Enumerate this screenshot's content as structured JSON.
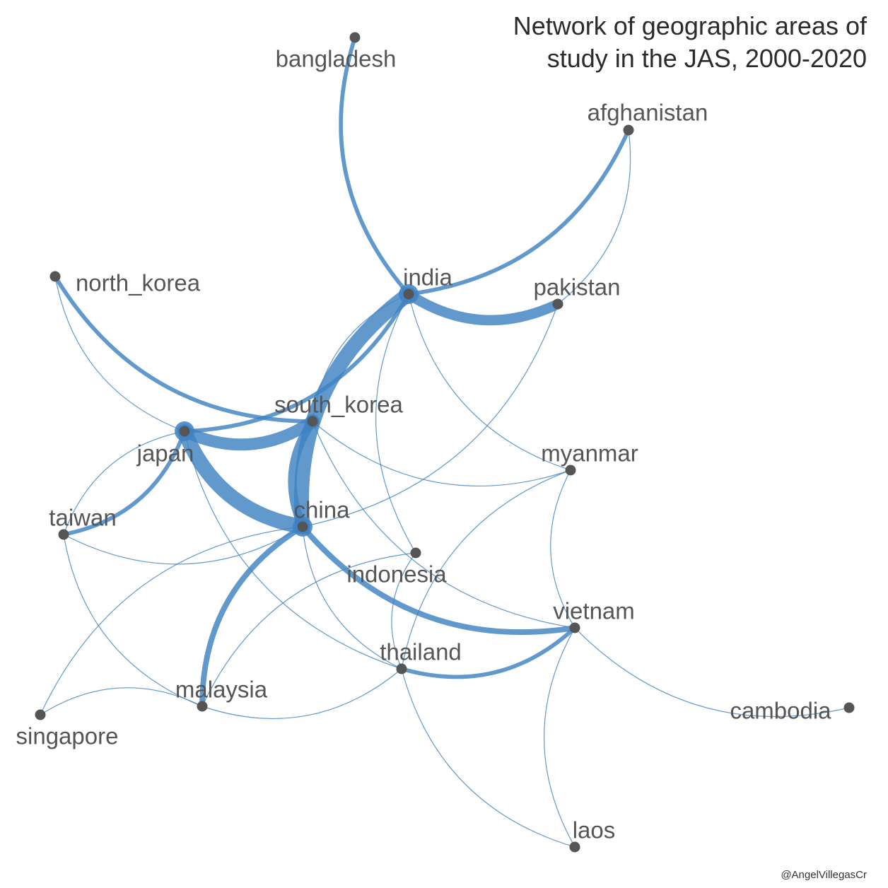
{
  "title_line1": "Network of geographic areas of",
  "title_line2": "study in the JAS, 2000-2020",
  "credit": "@AngelVillegasCr",
  "colors": {
    "edge": "#3f83c2",
    "node": "#555555",
    "label": "#555555",
    "title": "#2b2b2b"
  },
  "nodes": [
    {
      "id": "bangladesh",
      "label": "bangladesh"
    },
    {
      "id": "afghanistan",
      "label": "afghanistan"
    },
    {
      "id": "north_korea",
      "label": "north_korea"
    },
    {
      "id": "india",
      "label": "india"
    },
    {
      "id": "pakistan",
      "label": "pakistan"
    },
    {
      "id": "south_korea",
      "label": "south_korea"
    },
    {
      "id": "japan",
      "label": "japan"
    },
    {
      "id": "myanmar",
      "label": "myanmar"
    },
    {
      "id": "taiwan",
      "label": "taiwan"
    },
    {
      "id": "china",
      "label": "china"
    },
    {
      "id": "indonesia",
      "label": "indonesia"
    },
    {
      "id": "vietnam",
      "label": "vietnam"
    },
    {
      "id": "thailand",
      "label": "thailand"
    },
    {
      "id": "malaysia",
      "label": "malaysia"
    },
    {
      "id": "cambodia",
      "label": "cambodia"
    },
    {
      "id": "singapore",
      "label": "singapore"
    },
    {
      "id": "laos",
      "label": "laos"
    }
  ],
  "edges": [
    {
      "source": "japan",
      "target": "china",
      "weight": 9
    },
    {
      "source": "india",
      "target": "china",
      "weight": 9
    },
    {
      "source": "japan",
      "target": "south_korea",
      "weight": 7
    },
    {
      "source": "india",
      "target": "pakistan",
      "weight": 6
    },
    {
      "source": "south_korea",
      "target": "china",
      "weight": 5
    },
    {
      "source": "china",
      "target": "malaysia",
      "weight": 3
    },
    {
      "source": "china",
      "target": "vietnam",
      "weight": 3
    },
    {
      "source": "bangladesh",
      "target": "india",
      "weight": 2
    },
    {
      "source": "india",
      "target": "afghanistan",
      "weight": 2
    },
    {
      "source": "north_korea",
      "target": "south_korea",
      "weight": 2
    },
    {
      "source": "japan",
      "target": "india",
      "weight": 2
    },
    {
      "source": "taiwan",
      "target": "japan",
      "weight": 2
    },
    {
      "source": "thailand",
      "target": "vietnam",
      "weight": 2
    },
    {
      "source": "north_korea",
      "target": "japan",
      "weight": 1
    },
    {
      "source": "pakistan",
      "target": "afghanistan",
      "weight": 1
    },
    {
      "source": "india",
      "target": "south_korea",
      "weight": 1
    },
    {
      "source": "india",
      "target": "myanmar",
      "weight": 1
    },
    {
      "source": "india",
      "target": "indonesia",
      "weight": 1
    },
    {
      "source": "china",
      "target": "pakistan",
      "weight": 1
    },
    {
      "source": "south_korea",
      "target": "myanmar",
      "weight": 1
    },
    {
      "source": "south_korea",
      "target": "vietnam",
      "weight": 1
    },
    {
      "source": "japan",
      "target": "taiwan",
      "weight": 1
    },
    {
      "source": "japan",
      "target": "thailand",
      "weight": 1
    },
    {
      "source": "taiwan",
      "target": "china",
      "weight": 1
    },
    {
      "source": "taiwan",
      "target": "malaysia",
      "weight": 1
    },
    {
      "source": "china",
      "target": "singapore",
      "weight": 1
    },
    {
      "source": "china",
      "target": "thailand",
      "weight": 1
    },
    {
      "source": "indonesia",
      "target": "malaysia",
      "weight": 1
    },
    {
      "source": "indonesia",
      "target": "thailand",
      "weight": 1
    },
    {
      "source": "myanmar",
      "target": "thailand",
      "weight": 1
    },
    {
      "source": "myanmar",
      "target": "vietnam",
      "weight": 1
    },
    {
      "source": "malaysia",
      "target": "thailand",
      "weight": 1
    },
    {
      "source": "malaysia",
      "target": "singapore",
      "weight": 1
    },
    {
      "source": "vietnam",
      "target": "cambodia",
      "weight": 1
    },
    {
      "source": "vietnam",
      "target": "laos",
      "weight": 1
    },
    {
      "source": "thailand",
      "target": "laos",
      "weight": 1
    }
  ]
}
